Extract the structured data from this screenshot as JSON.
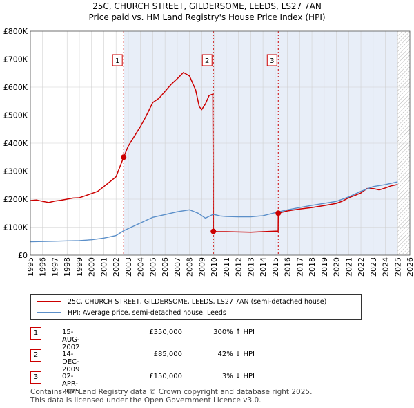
{
  "title_line1": "25C, CHURCH STREET, GILDERSOME, LEEDS, LS27 7AN",
  "title_line2": "Price paid vs. HM Land Registry's House Price Index (HPI)",
  "legend": {
    "property": "25C, CHURCH STREET, GILDERSOME, LEEDS, LS27 7AN (semi-detached house)",
    "hpi": "HPI: Average price, semi-detached house, Leeds"
  },
  "transactions": [
    {
      "num": "1",
      "date": "15-AUG-2002",
      "price": "£350,000",
      "hpi": "300% ↑ HPI"
    },
    {
      "num": "2",
      "date": "14-DEC-2009",
      "price": "£85,000",
      "hpi": "42% ↓ HPI"
    },
    {
      "num": "3",
      "date": "02-APR-2015",
      "price": "£150,000",
      "hpi": "3% ↓ HPI"
    }
  ],
  "footer": {
    "line1": "Contains HM Land Registry data © Crown copyright and database right 2025.",
    "line2": "This data is licensed under the Open Government Licence v3.0."
  },
  "colors": {
    "property": "#cc0000",
    "hpi": "#5b8fc9",
    "shade": "#e8eef8",
    "grid": "#d0d0d0"
  },
  "chart_data": {
    "type": "line",
    "xlim": [
      1995,
      2026
    ],
    "ylim": [
      0,
      800000
    ],
    "x_ticks": [
      "1995",
      "1996",
      "1997",
      "1998",
      "1999",
      "2000",
      "2001",
      "2002",
      "2003",
      "2004",
      "2005",
      "2006",
      "2007",
      "2008",
      "2009",
      "2010",
      "2011",
      "2012",
      "2013",
      "2014",
      "2015",
      "2016",
      "2017",
      "2018",
      "2019",
      "2020",
      "2021",
      "2022",
      "2023",
      "2024",
      "2025",
      "2026"
    ],
    "y_ticks": [
      {
        "value": 0,
        "label": "£0"
      },
      {
        "value": 100000,
        "label": "£100K"
      },
      {
        "value": 200000,
        "label": "£200K"
      },
      {
        "value": 300000,
        "label": "£300K"
      },
      {
        "value": 400000,
        "label": "£400K"
      },
      {
        "value": 500000,
        "label": "£500K"
      },
      {
        "value": 600000,
        "label": "£600K"
      },
      {
        "value": 700000,
        "label": "£700K"
      },
      {
        "value": 800000,
        "label": "£800K"
      }
    ],
    "shaded_from": 2002.62,
    "future_from": 2025.0,
    "sales": [
      {
        "label": "1",
        "x": 2002.62,
        "y": 350000
      },
      {
        "label": "2",
        "x": 2009.95,
        "y": 85000
      },
      {
        "label": "3",
        "x": 2015.25,
        "y": 150000
      }
    ],
    "series": [
      {
        "name": "25C, CHURCH STREET, GILDERSOME, LEEDS, LS27 7AN (semi-detached house)",
        "points": [
          [
            1995.0,
            195000
          ],
          [
            1995.5,
            197000
          ],
          [
            1996.0,
            192000
          ],
          [
            1996.5,
            188000
          ],
          [
            1997.0,
            193000
          ],
          [
            1997.5,
            196000
          ],
          [
            1998.0,
            200000
          ],
          [
            1998.5,
            204000
          ],
          [
            1999.0,
            205000
          ],
          [
            1999.5,
            212000
          ],
          [
            2000.0,
            220000
          ],
          [
            2000.5,
            228000
          ],
          [
            2001.0,
            245000
          ],
          [
            2001.5,
            262000
          ],
          [
            2002.0,
            280000
          ],
          [
            2002.62,
            350000
          ],
          [
            2003.0,
            390000
          ],
          [
            2003.5,
            425000
          ],
          [
            2004.0,
            460000
          ],
          [
            2004.5,
            500000
          ],
          [
            2005.0,
            545000
          ],
          [
            2005.5,
            560000
          ],
          [
            2006.0,
            585000
          ],
          [
            2006.5,
            610000
          ],
          [
            2007.0,
            630000
          ],
          [
            2007.5,
            652000
          ],
          [
            2008.0,
            640000
          ],
          [
            2008.5,
            590000
          ],
          [
            2008.8,
            530000
          ],
          [
            2009.0,
            520000
          ],
          [
            2009.3,
            540000
          ],
          [
            2009.6,
            570000
          ],
          [
            2009.9,
            575000
          ],
          [
            2009.95,
            85000
          ],
          [
            2010.3,
            84000
          ],
          [
            2011.0,
            84000
          ],
          [
            2012.0,
            83000
          ],
          [
            2013.0,
            82000
          ],
          [
            2014.0,
            84000
          ],
          [
            2015.0,
            86000
          ],
          [
            2015.24,
            86000
          ],
          [
            2015.25,
            150000
          ],
          [
            2016.0,
            158000
          ],
          [
            2017.0,
            165000
          ],
          [
            2018.0,
            170000
          ],
          [
            2019.0,
            177000
          ],
          [
            2020.0,
            185000
          ],
          [
            2020.5,
            193000
          ],
          [
            2021.0,
            205000
          ],
          [
            2021.5,
            213000
          ],
          [
            2022.0,
            222000
          ],
          [
            2022.5,
            238000
          ],
          [
            2023.0,
            238000
          ],
          [
            2023.5,
            233000
          ],
          [
            2024.0,
            240000
          ],
          [
            2024.5,
            248000
          ],
          [
            2025.0,
            252000
          ]
        ]
      },
      {
        "name": "HPI: Average price, semi-detached house, Leeds",
        "points": [
          [
            1995.0,
            48000
          ],
          [
            1996.0,
            49000
          ],
          [
            1997.0,
            50000
          ],
          [
            1998.0,
            51000
          ],
          [
            1999.0,
            52000
          ],
          [
            2000.0,
            55000
          ],
          [
            2001.0,
            61000
          ],
          [
            2002.0,
            70000
          ],
          [
            2002.62,
            87500
          ],
          [
            2003.0,
            95000
          ],
          [
            2004.0,
            115000
          ],
          [
            2005.0,
            135000
          ],
          [
            2006.0,
            145000
          ],
          [
            2007.0,
            155000
          ],
          [
            2008.0,
            162000
          ],
          [
            2008.7,
            150000
          ],
          [
            2009.3,
            132000
          ],
          [
            2009.95,
            146000
          ],
          [
            2010.5,
            140000
          ],
          [
            2011.0,
            138000
          ],
          [
            2012.0,
            137000
          ],
          [
            2013.0,
            137000
          ],
          [
            2014.0,
            141000
          ],
          [
            2015.25,
            154600
          ],
          [
            2016.0,
            162000
          ],
          [
            2017.0,
            170000
          ],
          [
            2018.0,
            178000
          ],
          [
            2019.0,
            185000
          ],
          [
            2020.0,
            192000
          ],
          [
            2021.0,
            208000
          ],
          [
            2022.0,
            228000
          ],
          [
            2023.0,
            245000
          ],
          [
            2024.0,
            252000
          ],
          [
            2025.0,
            262000
          ]
        ]
      }
    ]
  }
}
